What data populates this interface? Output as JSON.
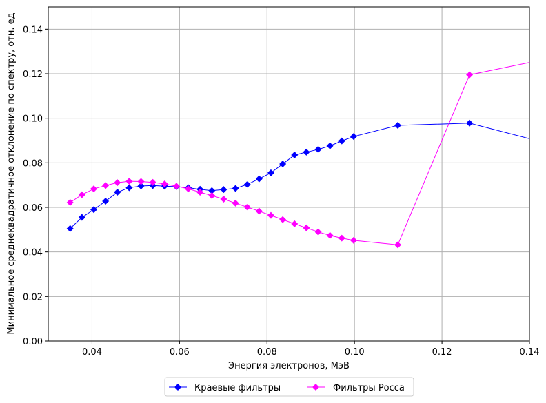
{
  "chart_data": {
    "type": "line",
    "xlabel": "Энергия электронов, МэВ",
    "ylabel": "Минимальное среднеквадратичное отклонение по спектру, отн. ед",
    "xlim": [
      0.03,
      0.14
    ],
    "ylim": [
      0.0,
      0.15
    ],
    "xticks": [
      0.04,
      0.06,
      0.08,
      0.1,
      0.12,
      0.14
    ],
    "xtick_labels": [
      "0.04",
      "0.06",
      "0.08",
      "0.10",
      "0.12",
      "0.14"
    ],
    "yticks": [
      0.0,
      0.02,
      0.04,
      0.06,
      0.08,
      0.1,
      0.12,
      0.14
    ],
    "ytick_labels": [
      "0.00",
      "0.02",
      "0.04",
      "0.06",
      "0.08",
      "0.10",
      "0.12",
      "0.14"
    ],
    "grid": true,
    "legend_position": "bottom-center, below plot",
    "series": [
      {
        "name": "Краевые фильтры",
        "color": "#0000ff",
        "marker": "diamond",
        "x": [
          0.035,
          0.0377,
          0.0404,
          0.0431,
          0.0458,
          0.0485,
          0.0512,
          0.0539,
          0.0566,
          0.0593,
          0.062,
          0.0647,
          0.0674,
          0.0701,
          0.0728,
          0.0755,
          0.0782,
          0.0809,
          0.0836,
          0.0863,
          0.089,
          0.0917,
          0.0944,
          0.0971,
          0.0998,
          0.1099,
          0.1263,
          0.1436
        ],
        "y": [
          0.0505,
          0.0555,
          0.059,
          0.0628,
          0.0668,
          0.0688,
          0.0696,
          0.0698,
          0.0695,
          0.0693,
          0.0688,
          0.0681,
          0.0675,
          0.068,
          0.0685,
          0.0703,
          0.0728,
          0.0755,
          0.0795,
          0.0835,
          0.0848,
          0.086,
          0.0876,
          0.0898,
          0.0918,
          0.0968,
          0.0978,
          0.089
        ]
      },
      {
        "name": "Фильтры Росса",
        "color": "#ff00ff",
        "marker": "diamond",
        "x": [
          0.035,
          0.0377,
          0.0404,
          0.0431,
          0.0458,
          0.0485,
          0.0512,
          0.0539,
          0.0566,
          0.0593,
          0.062,
          0.0647,
          0.0674,
          0.0701,
          0.0728,
          0.0755,
          0.0782,
          0.0809,
          0.0836,
          0.0863,
          0.089,
          0.0917,
          0.0944,
          0.0971,
          0.0998,
          0.1099,
          0.1263,
          0.1436
        ],
        "y": [
          0.0622,
          0.0657,
          0.0683,
          0.0698,
          0.0711,
          0.0717,
          0.0716,
          0.0712,
          0.0705,
          0.0695,
          0.0683,
          0.0668,
          0.0653,
          0.0637,
          0.0619,
          0.0601,
          0.0583,
          0.0564,
          0.0545,
          0.0526,
          0.0508,
          0.049,
          0.0474,
          0.0462,
          0.0452,
          0.0432,
          0.1195,
          0.1265
        ]
      }
    ]
  }
}
